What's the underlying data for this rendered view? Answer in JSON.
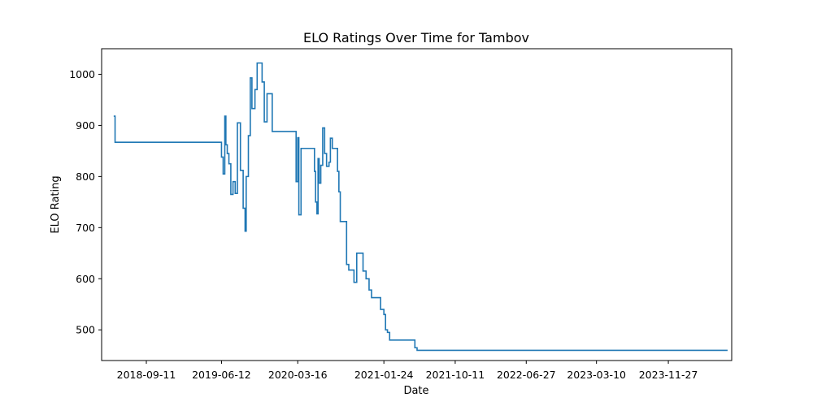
{
  "chart_data": {
    "type": "line",
    "title": "ELO Ratings Over Time for Tambov",
    "xlabel": "Date",
    "ylabel": "ELO Rating",
    "x_ticks": [
      "2018-09-11",
      "2019-06-12",
      "2020-03-16",
      "2021-01-24",
      "2021-10-11",
      "2022-06-27",
      "2023-03-10",
      "2023-11-27"
    ],
    "y_ticks": [
      500,
      600,
      700,
      800,
      900,
      1000
    ],
    "ylim": [
      440,
      1050
    ],
    "xlim": [
      "2018-04-01",
      "2024-07-15"
    ],
    "grid": false,
    "step": true,
    "color": "#1f77b4",
    "series": [
      {
        "x": [
          "2018-05-15",
          "2018-05-20",
          "2019-06-12",
          "2019-06-18",
          "2019-06-24",
          "2019-06-28",
          "2019-07-03",
          "2019-07-09",
          "2019-07-16",
          "2019-07-24",
          "2019-08-01",
          "2019-08-09",
          "2019-08-20",
          "2019-08-30",
          "2019-09-06",
          "2019-09-10",
          "2019-09-18",
          "2019-09-25",
          "2019-10-01",
          "2019-10-12",
          "2019-10-20",
          "2019-10-30",
          "2019-11-07",
          "2019-11-15",
          "2019-11-25",
          "2019-12-03",
          "2019-12-14",
          "2020-03-10",
          "2020-03-16",
          "2020-03-20",
          "2020-03-28",
          "2020-05-16",
          "2020-05-20",
          "2020-05-25",
          "2020-05-29",
          "2020-06-02",
          "2020-06-08",
          "2020-06-15",
          "2020-06-22",
          "2020-06-29",
          "2020-07-08",
          "2020-07-13",
          "2020-07-20",
          "2020-08-08",
          "2020-08-13",
          "2020-08-18",
          "2020-09-10",
          "2020-09-18",
          "2020-10-07",
          "2020-10-17",
          "2020-10-28",
          "2020-11-09",
          "2020-11-20",
          "2020-12-01",
          "2020-12-10",
          "2021-01-12",
          "2021-01-24",
          "2021-01-30",
          "2021-02-06",
          "2021-02-14",
          "2021-05-17",
          "2021-05-25",
          "2021-06-03",
          "2021-06-08",
          "2021-06-15",
          "2021-06-23",
          "2021-07-02",
          "2021-07-10",
          "2021-07-19",
          "2021-07-27",
          "2021-08-06",
          "2024-06-30"
        ],
        "y": [
          918,
          867,
          838,
          805,
          918,
          862,
          845,
          825,
          765,
          790,
          767,
          905,
          812,
          738,
          693,
          800,
          880,
          993,
          933,
          970,
          1022,
          1022,
          985,
          907,
          962,
          962,
          888,
          790,
          876,
          725,
          855,
          810,
          750,
          727,
          835,
          787,
          822,
          895,
          845,
          820,
          828,
          875,
          855,
          810,
          770,
          712,
          628,
          617,
          593,
          650,
          650,
          615,
          600,
          578,
          563,
          540,
          530,
          500,
          495,
          480,
          465,
          460,
          460,
          460,
          460,
          460,
          460,
          460,
          460,
          460,
          460,
          460
        ]
      }
    ]
  }
}
